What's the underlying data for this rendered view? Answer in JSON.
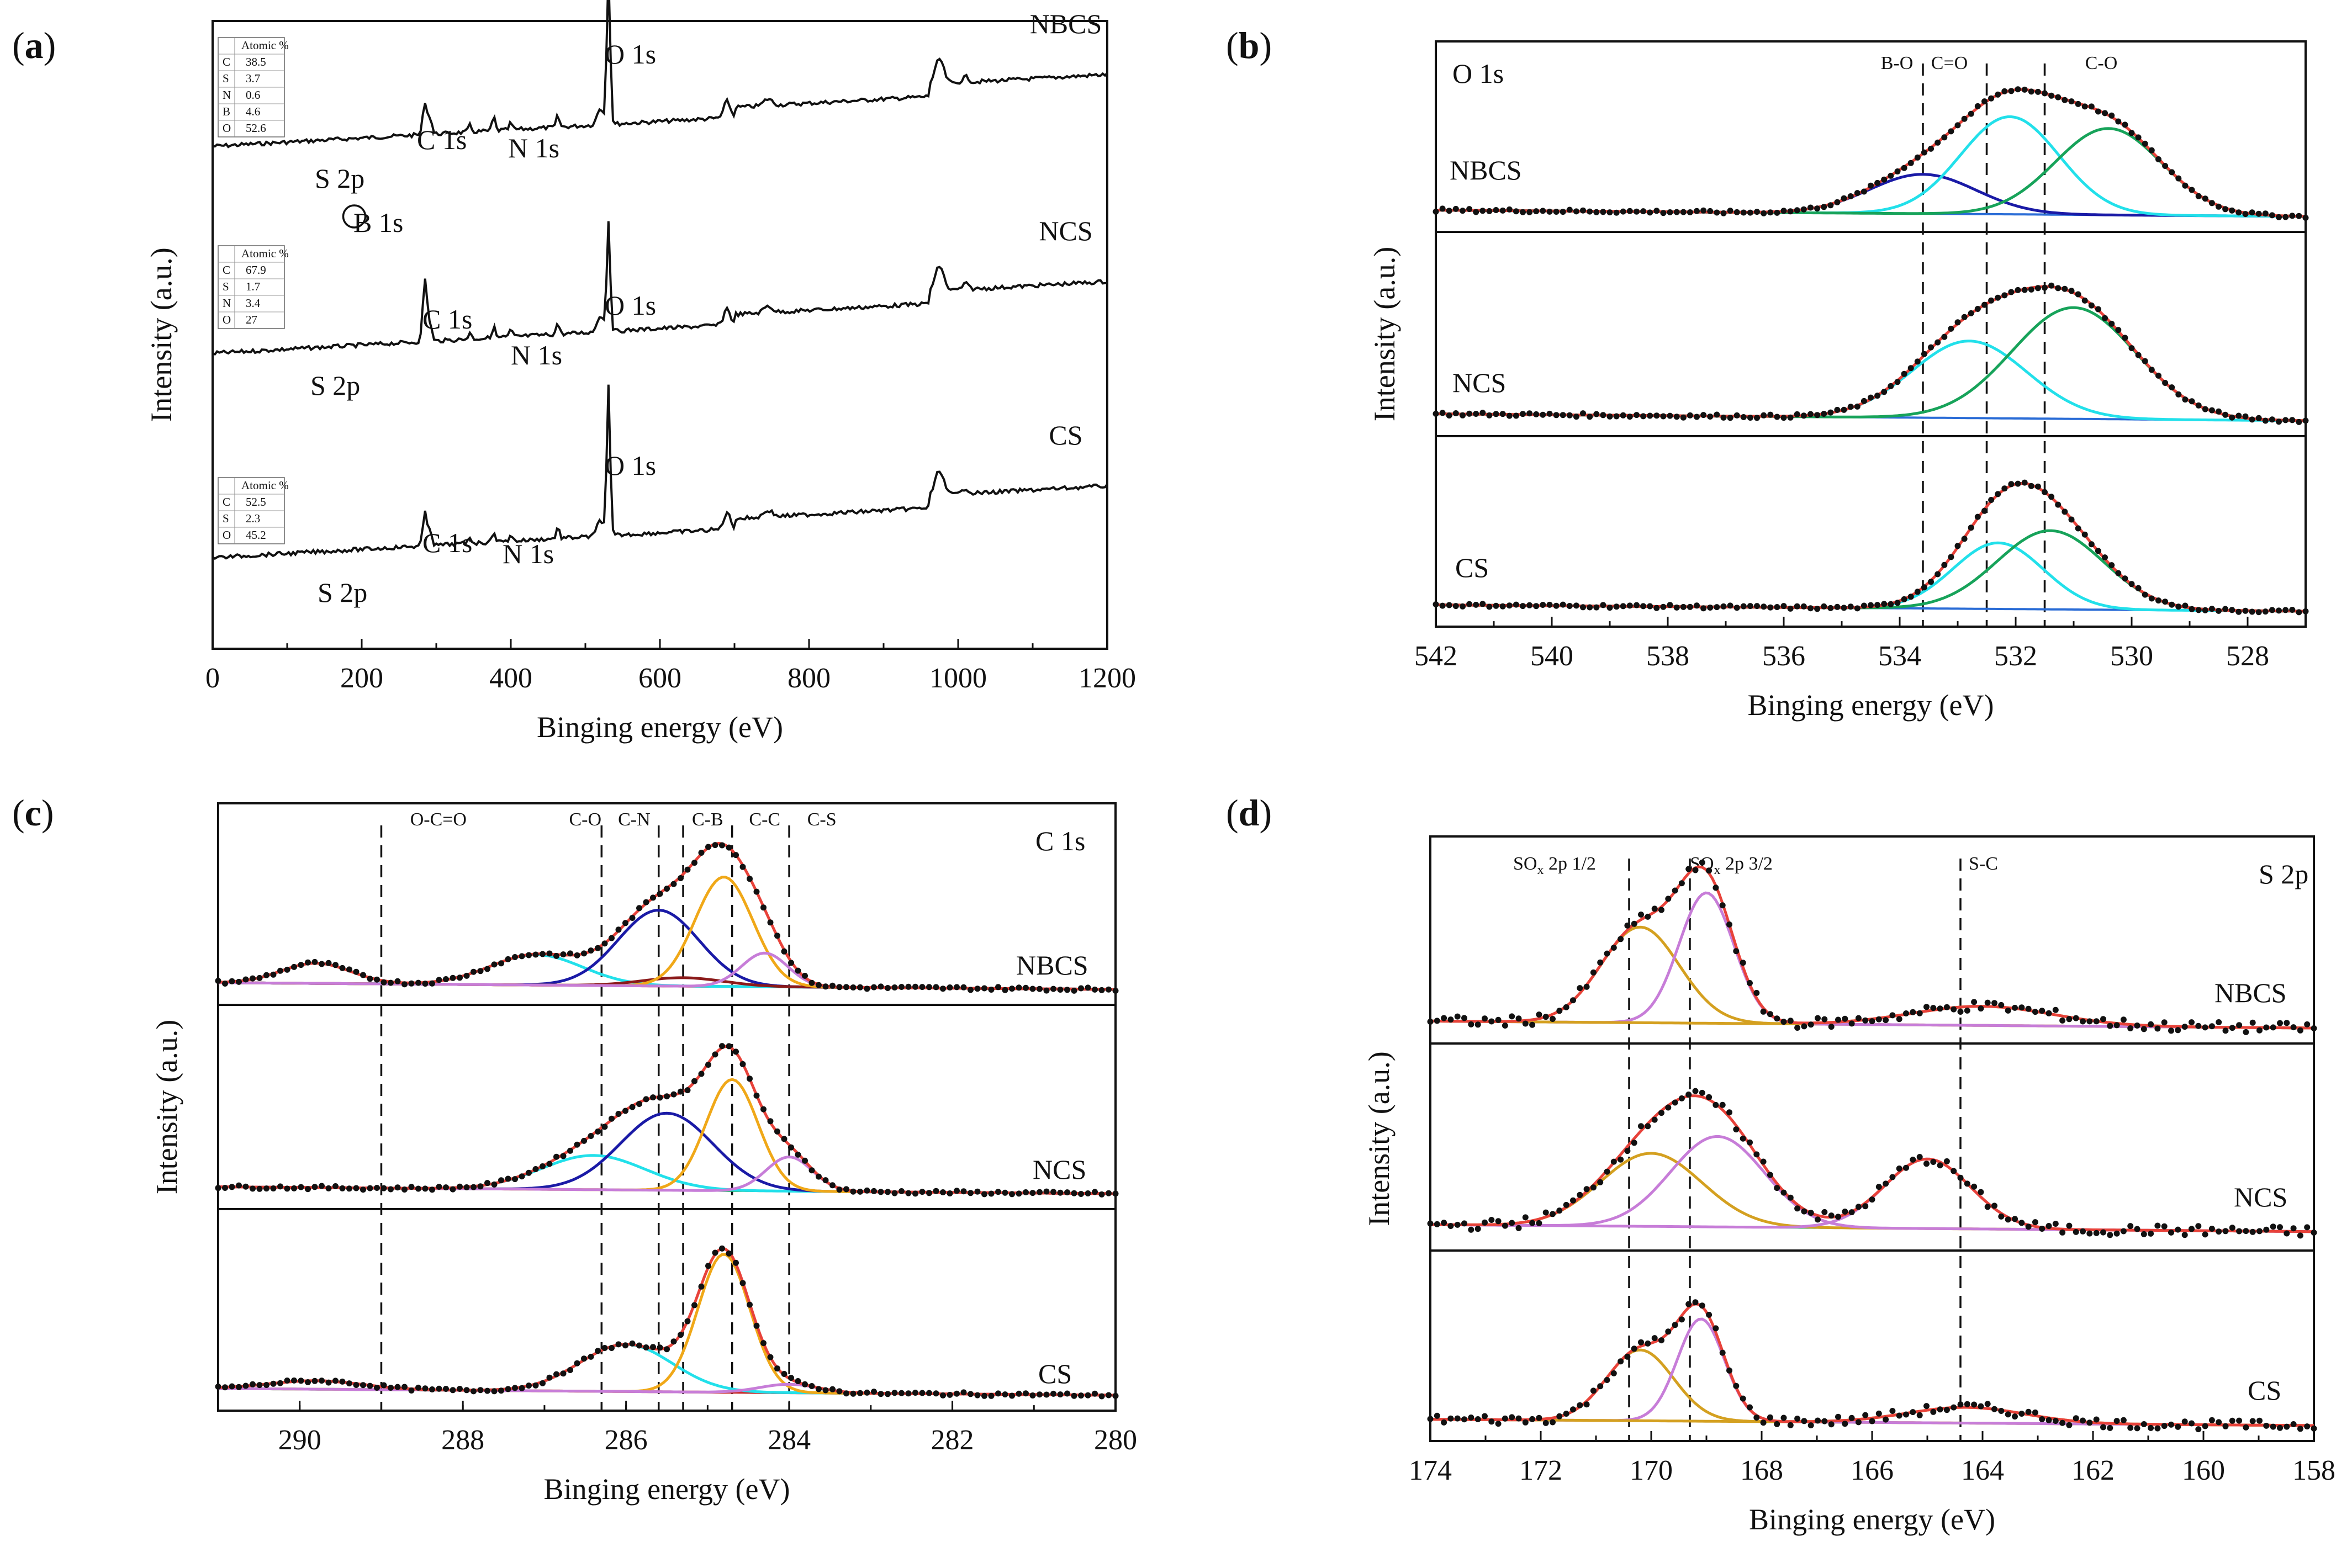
{
  "chart_data": [
    {
      "panel": "a",
      "panel_label_parts": [
        "(",
        "a",
        ")"
      ],
      "type": "line",
      "title": "",
      "xlabel": "Binging energy (eV)",
      "ylabel": "Intensity (a.u.)",
      "xlim": [
        0,
        1200
      ],
      "xticks": [
        "0",
        "200",
        "400",
        "600",
        "800",
        "1000",
        "1200"
      ],
      "series": [
        {
          "name": "NBCS",
          "peak_labels": [
            "S 2p",
            "B 1s",
            "C 1s",
            "N 1s",
            "O 1s"
          ],
          "table_header": "Atomic %",
          "composition": [
            [
              "C",
              "38.5"
            ],
            [
              "S",
              "3.7"
            ],
            [
              "N",
              "0.6"
            ],
            [
              "B",
              "4.6"
            ],
            [
              "O",
              "52.6"
            ]
          ]
        },
        {
          "name": "NCS",
          "peak_labels": [
            "S 2p",
            "C 1s",
            "N 1s",
            "O 1s"
          ],
          "table_header": "Atomic %",
          "composition": [
            [
              "C",
              "67.9"
            ],
            [
              "S",
              "1.7"
            ],
            [
              "N",
              "3.4"
            ],
            [
              "O",
              "27"
            ]
          ]
        },
        {
          "name": "CS",
          "peak_labels": [
            "S 2p",
            "C 1s",
            "N 1s",
            "O 1s"
          ],
          "table_header": "Atomic %",
          "composition": [
            [
              "C",
              "52.5"
            ],
            [
              "S",
              "2.3"
            ],
            [
              "O",
              "45.2"
            ]
          ]
        }
      ]
    },
    {
      "panel": "b",
      "panel_label_parts": [
        "(",
        "b",
        ")"
      ],
      "type": "line",
      "title": "O 1s",
      "xlabel": "Binging energy (eV)",
      "ylabel": "Intensity (a.u.)",
      "xlim": [
        542,
        527
      ],
      "xticks": [
        "542",
        "540",
        "538",
        "536",
        "534",
        "532",
        "530",
        "528"
      ],
      "component_labels": [
        "B-O",
        "C=O",
        "C-O"
      ],
      "reference_lines_ev": [
        533.6,
        532.5,
        531.5
      ],
      "series": [
        {
          "name": "NBCS",
          "components": [
            {
              "center": 533.6,
              "height": 0.25,
              "width": 1.3,
              "color": "#1a1aa6"
            },
            {
              "center": 532.1,
              "height": 0.62,
              "width": 1.2,
              "color": "#22e0ea"
            },
            {
              "center": 530.4,
              "height": 0.55,
              "width": 1.3,
              "color": "#17a35a"
            }
          ]
        },
        {
          "name": "NCS",
          "components": [
            {
              "center": 532.8,
              "height": 0.45,
              "width": 1.4,
              "color": "#22e0ea"
            },
            {
              "center": 531.0,
              "height": 0.65,
              "width": 1.5,
              "color": "#17a35a"
            }
          ]
        },
        {
          "name": "CS",
          "components": [
            {
              "center": 532.3,
              "height": 0.42,
              "width": 1.1,
              "color": "#22e0ea"
            },
            {
              "center": 531.4,
              "height": 0.5,
              "width": 1.3,
              "color": "#17a35a"
            }
          ]
        }
      ]
    },
    {
      "panel": "c",
      "panel_label_parts": [
        "(",
        "c",
        ")"
      ],
      "type": "line",
      "title": "C 1s",
      "xlabel": "Binging energy (eV)",
      "ylabel": "Intensity (a.u.)",
      "xlim": [
        291,
        280
      ],
      "xticks": [
        "290",
        "288",
        "286",
        "284",
        "282",
        "280"
      ],
      "component_labels": [
        "O-C=O",
        "C-O",
        "C-N",
        "C-B",
        "C-C",
        "C-S"
      ],
      "reference_lines_ev": [
        289.0,
        286.3,
        285.6,
        285.3,
        284.7,
        284.0
      ],
      "series": [
        {
          "name": "NBCS",
          "components": [
            {
              "center": 289.8,
              "height": 0.12,
              "width": 0.6,
              "color": "#c83030"
            },
            {
              "center": 287.1,
              "height": 0.18,
              "width": 0.8,
              "color": "#22e0ea"
            },
            {
              "center": 285.6,
              "height": 0.45,
              "width": 0.7,
              "color": "#1a1aa6"
            },
            {
              "center": 285.3,
              "height": 0.05,
              "width": 0.7,
              "color": "#8b1a1a"
            },
            {
              "center": 284.8,
              "height": 0.65,
              "width": 0.5,
              "color": "#f0a818"
            },
            {
              "center": 284.3,
              "height": 0.2,
              "width": 0.4,
              "color": "#c77dd8"
            }
          ]
        },
        {
          "name": "NCS",
          "components": [
            {
              "center": 286.4,
              "height": 0.2,
              "width": 0.9,
              "color": "#22e0ea"
            },
            {
              "center": 285.5,
              "height": 0.45,
              "width": 0.8,
              "color": "#1a1aa6"
            },
            {
              "center": 284.7,
              "height": 0.65,
              "width": 0.45,
              "color": "#f0a818"
            },
            {
              "center": 284.0,
              "height": 0.2,
              "width": 0.4,
              "color": "#c77dd8"
            }
          ]
        },
        {
          "name": "CS",
          "components": [
            {
              "center": 289.8,
              "height": 0.05,
              "width": 0.8,
              "color": "#c83030"
            },
            {
              "center": 286.0,
              "height": 0.28,
              "width": 0.8,
              "color": "#22e0ea"
            },
            {
              "center": 284.8,
              "height": 0.82,
              "width": 0.45,
              "color": "#f0a818"
            },
            {
              "center": 284.0,
              "height": 0.05,
              "width": 0.5,
              "color": "#c77dd8"
            }
          ]
        }
      ]
    },
    {
      "panel": "d",
      "panel_label_parts": [
        "(",
        "d",
        ")"
      ],
      "type": "line",
      "title": "S 2p",
      "xlabel": "Binging energy (eV)",
      "ylabel": "Intensity (a.u.)",
      "xlim": [
        174,
        158
      ],
      "xticks": [
        "174",
        "172",
        "170",
        "168",
        "166",
        "164",
        "162",
        "160",
        "158"
      ],
      "component_labels": [
        {
          "prefix": "SO",
          "sub": "x",
          "suffix": "  2p 1/2"
        },
        {
          "prefix": "SO",
          "sub": "x",
          "suffix": "  2p 3/2"
        },
        {
          "prefix": "S-C",
          "sub": "",
          "suffix": ""
        }
      ],
      "reference_lines_ev": [
        170.4,
        169.3,
        164.4
      ],
      "series": [
        {
          "name": "NBCS",
          "components": [
            {
              "center": 170.2,
              "height": 0.55,
              "width": 1.0,
              "color": "#d4a020"
            },
            {
              "center": 169.0,
              "height": 0.75,
              "width": 0.7,
              "color": "#c77dd8"
            },
            {
              "center": 164.0,
              "height": 0.11,
              "width": 1.8,
              "color": "#d4a020"
            }
          ]
        },
        {
          "name": "NCS",
          "components": [
            {
              "center": 170.0,
              "height": 0.42,
              "width": 1.3,
              "color": "#d4a020"
            },
            {
              "center": 168.8,
              "height": 0.52,
              "width": 1.2,
              "color": "#c77dd8"
            },
            {
              "center": 165.0,
              "height": 0.4,
              "width": 1.1,
              "color": "#c77dd8"
            }
          ]
        },
        {
          "name": "CS",
          "components": [
            {
              "center": 170.2,
              "height": 0.45,
              "width": 0.85,
              "color": "#d4a020"
            },
            {
              "center": 169.1,
              "height": 0.65,
              "width": 0.6,
              "color": "#c77dd8"
            },
            {
              "center": 164.3,
              "height": 0.1,
              "width": 1.5,
              "color": "#d4a020"
            }
          ]
        }
      ]
    }
  ]
}
